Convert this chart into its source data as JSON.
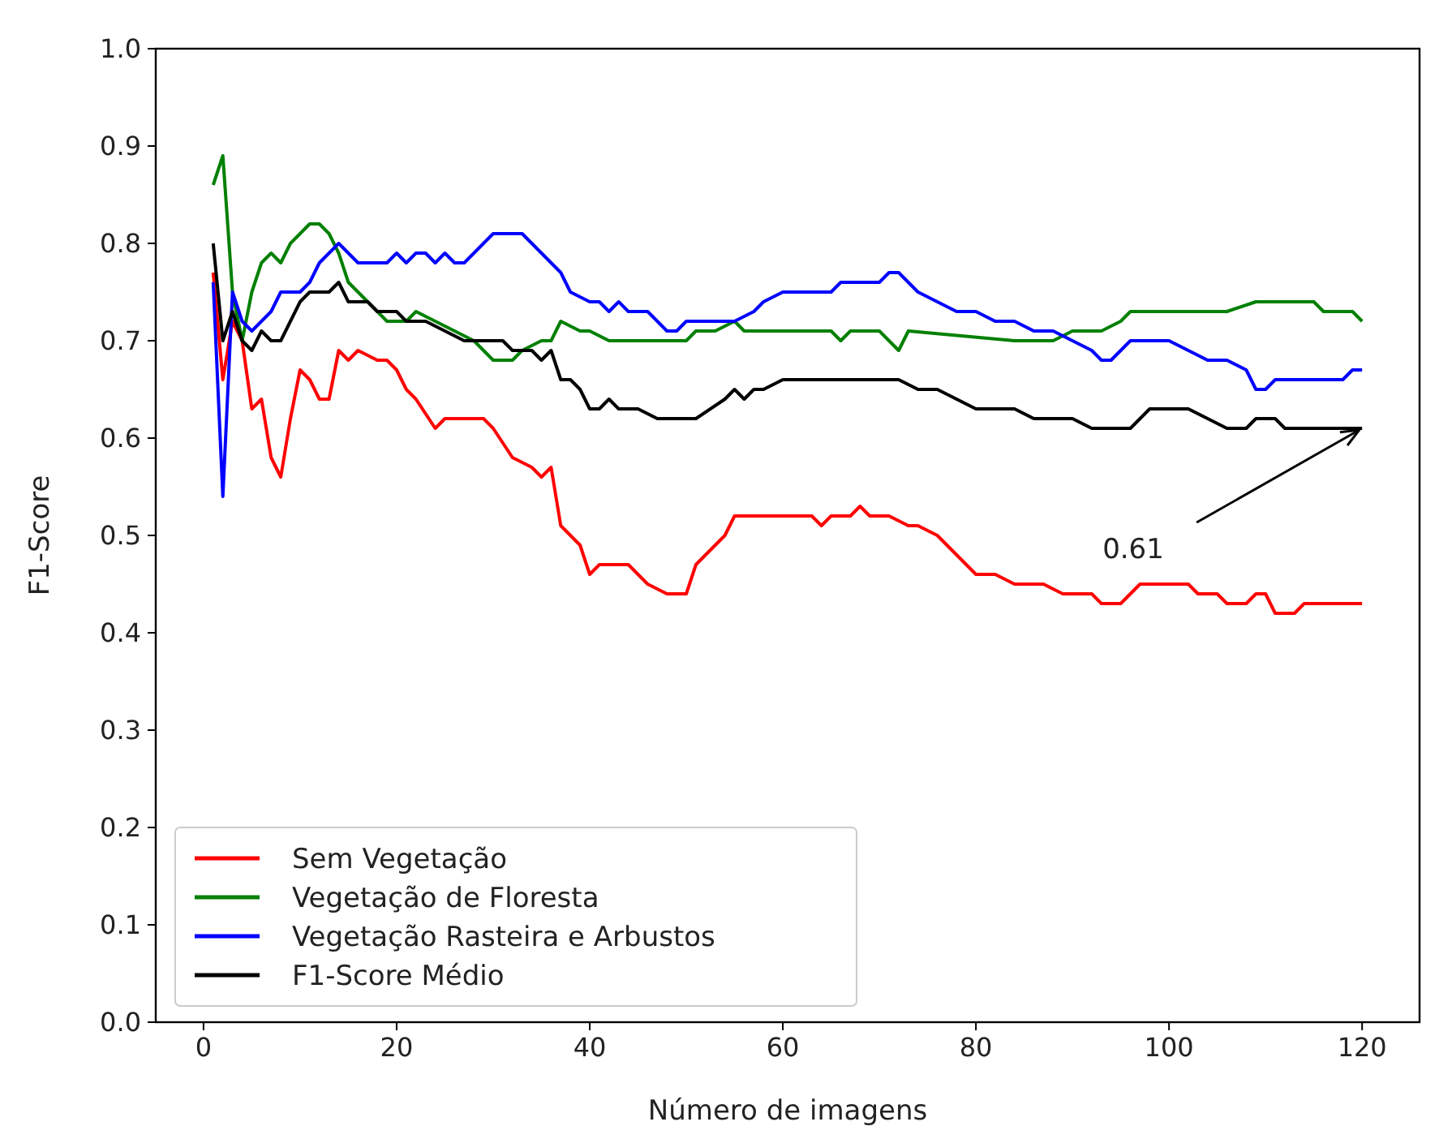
{
  "chart_data": {
    "type": "line",
    "xlabel": "Número de imagens",
    "ylabel": "F1-Score",
    "xlim": [
      -4.95,
      125.95
    ],
    "ylim": [
      0,
      1
    ],
    "xticks": [
      0,
      20,
      40,
      60,
      80,
      100,
      120
    ],
    "yticks": [
      {
        "value": 0,
        "label": "0.0"
      },
      {
        "value": 0.1,
        "label": "0.1"
      },
      {
        "value": 0.2,
        "label": "0.2"
      },
      {
        "value": 0.3,
        "label": "0.3"
      },
      {
        "value": 0.4,
        "label": "0.4"
      },
      {
        "value": 0.5,
        "label": "0.5"
      },
      {
        "value": 0.6,
        "label": "0.6"
      },
      {
        "value": 0.7,
        "label": "0.7"
      },
      {
        "value": 0.8,
        "label": "0.8"
      },
      {
        "value": 0.9,
        "label": "0.9"
      },
      {
        "value": 1,
        "label": "1.0"
      }
    ],
    "grid": false,
    "legend": "bottom left",
    "marker": "none",
    "line_style": "solid",
    "annotations": [
      {
        "text": "0.61",
        "x": 120,
        "y": 0.61
      }
    ],
    "series": [
      {
        "name": "Sem Vegetação",
        "color": "#ff0000",
        "x": [
          1,
          2,
          3,
          4,
          5,
          6,
          7,
          8,
          9,
          10,
          11,
          12,
          13,
          14,
          15,
          16,
          18,
          19,
          20,
          21,
          22,
          24,
          25,
          29,
          30,
          32,
          34,
          35,
          36,
          37,
          39,
          40,
          41,
          44,
          46,
          48,
          50,
          51,
          53,
          54,
          55,
          63,
          64,
          65,
          67,
          68,
          69,
          71,
          73,
          74,
          76,
          78,
          80,
          82,
          84,
          87,
          89,
          92,
          93,
          95,
          97,
          102,
          103,
          105,
          106,
          108,
          109,
          110,
          111,
          113,
          114,
          120
        ],
        "values": [
          0.77,
          0.66,
          0.72,
          0.7,
          0.63,
          0.64,
          0.58,
          0.56,
          0.62,
          0.67,
          0.66,
          0.64,
          0.64,
          0.69,
          0.68,
          0.69,
          0.68,
          0.68,
          0.67,
          0.65,
          0.64,
          0.61,
          0.62,
          0.62,
          0.61,
          0.58,
          0.57,
          0.56,
          0.57,
          0.51,
          0.49,
          0.46,
          0.47,
          0.47,
          0.45,
          0.44,
          0.44,
          0.47,
          0.49,
          0.5,
          0.52,
          0.52,
          0.51,
          0.52,
          0.52,
          0.53,
          0.52,
          0.52,
          0.51,
          0.51,
          0.5,
          0.48,
          0.46,
          0.46,
          0.45,
          0.45,
          0.44,
          0.44,
          0.43,
          0.43,
          0.45,
          0.45,
          0.44,
          0.44,
          0.43,
          0.43,
          0.44,
          0.44,
          0.42,
          0.42,
          0.43,
          0.43
        ]
      },
      {
        "name": "Vegetação de Floresta",
        "color": "#008000",
        "x": [
          1,
          2,
          3,
          4,
          5,
          6,
          7,
          8,
          9,
          10,
          11,
          12,
          13,
          14,
          15,
          17,
          19,
          21,
          22,
          24,
          26,
          28,
          30,
          32,
          33,
          35,
          36,
          37,
          39,
          40,
          42,
          50,
          51,
          53,
          55,
          56,
          65,
          66,
          67,
          70,
          71,
          72,
          73,
          84,
          88,
          90,
          93,
          95,
          96,
          106,
          109,
          115,
          116,
          119,
          120
        ],
        "values": [
          0.86,
          0.89,
          0.75,
          0.7,
          0.75,
          0.78,
          0.79,
          0.78,
          0.8,
          0.81,
          0.82,
          0.82,
          0.81,
          0.79,
          0.76,
          0.74,
          0.72,
          0.72,
          0.73,
          0.72,
          0.71,
          0.7,
          0.68,
          0.68,
          0.69,
          0.7,
          0.7,
          0.72,
          0.71,
          0.71,
          0.7,
          0.7,
          0.71,
          0.71,
          0.72,
          0.71,
          0.71,
          0.7,
          0.71,
          0.71,
          0.7,
          0.69,
          0.71,
          0.7,
          0.7,
          0.71,
          0.71,
          0.72,
          0.73,
          0.73,
          0.74,
          0.74,
          0.73,
          0.73,
          0.72
        ]
      },
      {
        "name": "Vegetação Rasteira e Arbustos",
        "color": "#0000ff",
        "x": [
          1,
          2,
          3,
          4,
          5,
          6,
          7,
          8,
          10,
          11,
          12,
          13,
          14,
          15,
          16,
          19,
          20,
          21,
          22,
          23,
          24,
          25,
          26,
          27,
          28,
          29,
          30,
          33,
          35,
          37,
          38,
          40,
          41,
          42,
          43,
          44,
          46,
          48,
          49,
          50,
          55,
          57,
          58,
          60,
          65,
          66,
          70,
          71,
          72,
          74,
          76,
          78,
          80,
          82,
          84,
          86,
          88,
          90,
          92,
          93,
          94,
          96,
          100,
          102,
          104,
          106,
          108,
          109,
          110,
          111,
          118,
          119,
          120
        ],
        "values": [
          0.76,
          0.54,
          0.75,
          0.72,
          0.71,
          0.72,
          0.73,
          0.75,
          0.75,
          0.76,
          0.78,
          0.79,
          0.8,
          0.79,
          0.78,
          0.78,
          0.79,
          0.78,
          0.79,
          0.79,
          0.78,
          0.79,
          0.78,
          0.78,
          0.79,
          0.8,
          0.81,
          0.81,
          0.79,
          0.77,
          0.75,
          0.74,
          0.74,
          0.73,
          0.74,
          0.73,
          0.73,
          0.71,
          0.71,
          0.72,
          0.72,
          0.73,
          0.74,
          0.75,
          0.75,
          0.76,
          0.76,
          0.77,
          0.77,
          0.75,
          0.74,
          0.73,
          0.73,
          0.72,
          0.72,
          0.71,
          0.71,
          0.7,
          0.69,
          0.68,
          0.68,
          0.7,
          0.7,
          0.69,
          0.68,
          0.68,
          0.67,
          0.65,
          0.65,
          0.66,
          0.66,
          0.67,
          0.67
        ]
      },
      {
        "name": "F1-Score Médio",
        "color": "#000000",
        "x": [
          1,
          2,
          3,
          4,
          5,
          6,
          7,
          8,
          9,
          10,
          11,
          13,
          14,
          15,
          17,
          18,
          20,
          21,
          23,
          25,
          27,
          29,
          31,
          32,
          34,
          35,
          36,
          37,
          38,
          39,
          40,
          41,
          42,
          43,
          45,
          47,
          51,
          54,
          55,
          56,
          57,
          58,
          60,
          72,
          74,
          76,
          78,
          80,
          84,
          86,
          90,
          92,
          96,
          97,
          98,
          102,
          104,
          106,
          108,
          109,
          111,
          112,
          120
        ],
        "values": [
          0.8,
          0.7,
          0.73,
          0.7,
          0.69,
          0.71,
          0.7,
          0.7,
          0.72,
          0.74,
          0.75,
          0.75,
          0.76,
          0.74,
          0.74,
          0.73,
          0.73,
          0.72,
          0.72,
          0.71,
          0.7,
          0.7,
          0.7,
          0.69,
          0.69,
          0.68,
          0.69,
          0.66,
          0.66,
          0.65,
          0.63,
          0.63,
          0.64,
          0.63,
          0.63,
          0.62,
          0.62,
          0.64,
          0.65,
          0.64,
          0.65,
          0.65,
          0.66,
          0.66,
          0.65,
          0.65,
          0.64,
          0.63,
          0.63,
          0.62,
          0.62,
          0.61,
          0.61,
          0.62,
          0.63,
          0.63,
          0.62,
          0.61,
          0.61,
          0.62,
          0.62,
          0.61,
          0.61
        ]
      }
    ]
  }
}
